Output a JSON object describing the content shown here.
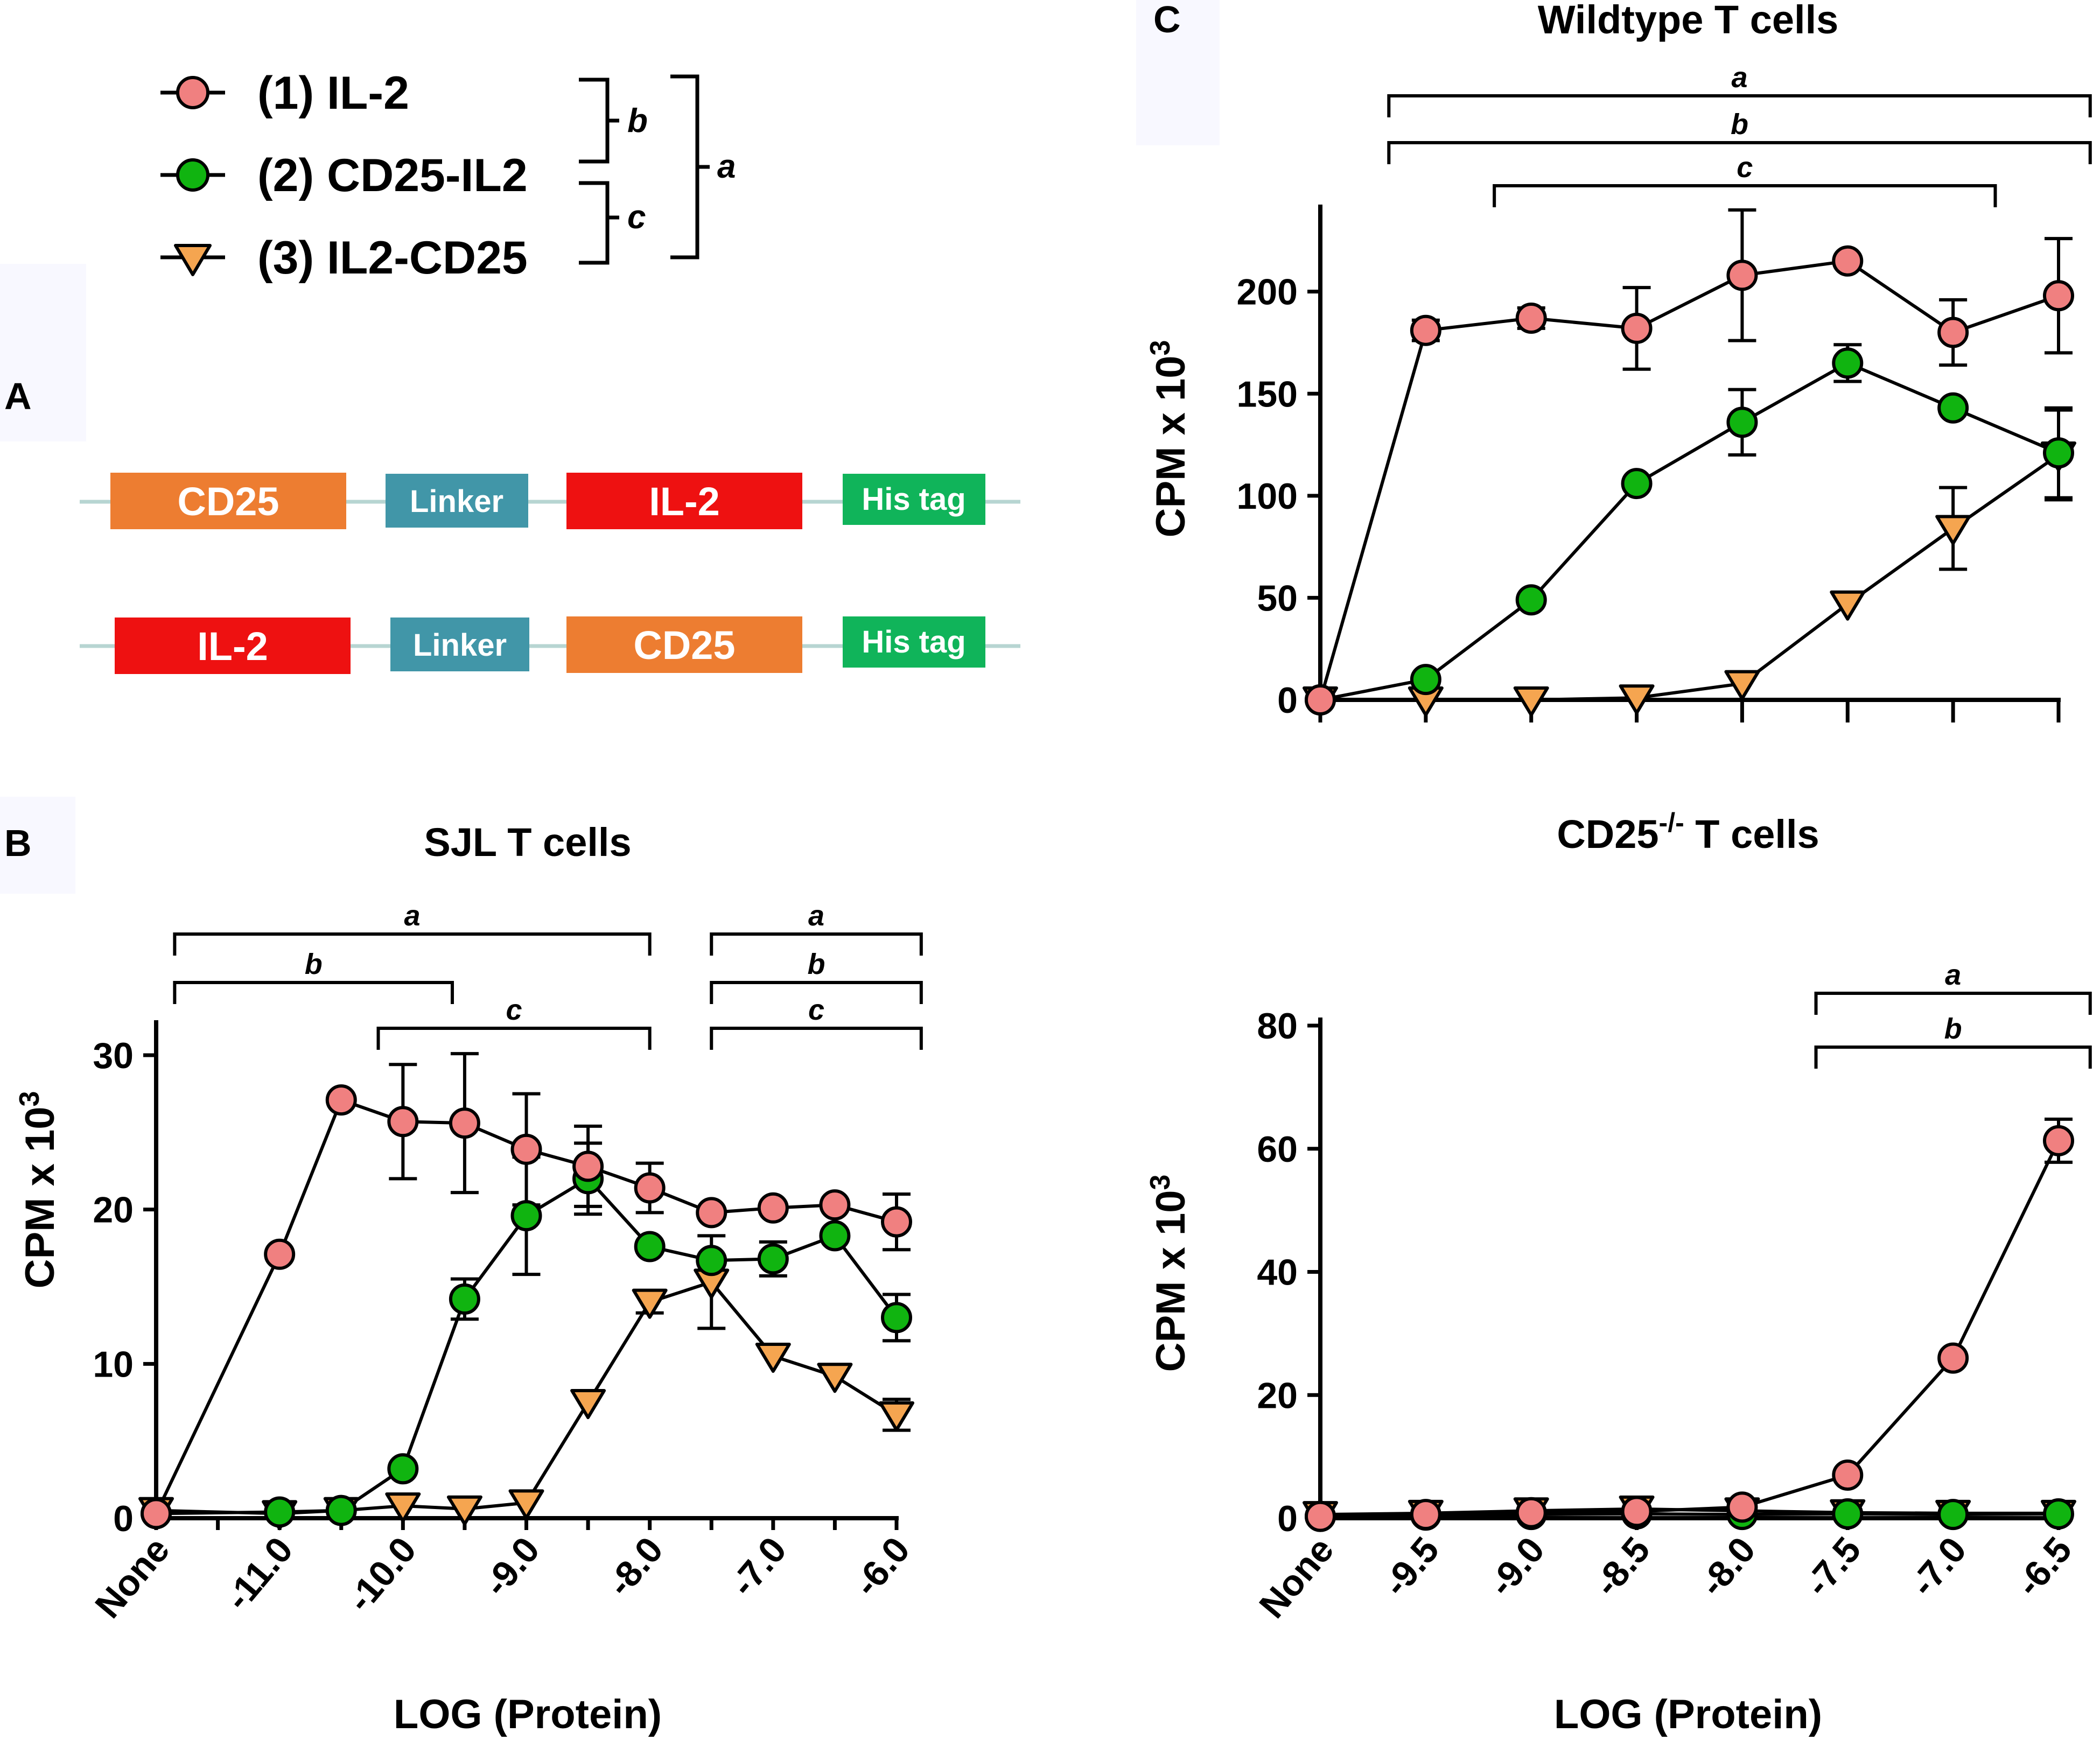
{
  "legend": {
    "items": [
      {
        "label": "(1) IL-2",
        "marker": "circle",
        "color": "#F08080"
      },
      {
        "label": "(2) CD25-IL2",
        "marker": "circle",
        "color": "#10B410"
      },
      {
        "label": "(3) IL2-CD25",
        "marker": "triangle-down",
        "color": "#F5A550"
      }
    ],
    "brackets": [
      "b",
      "c",
      "a"
    ]
  },
  "panels": {
    "A": "A",
    "B": "B",
    "C": "C"
  },
  "constructs": [
    {
      "boxes": [
        {
          "label": "CD25",
          "color": "#ED7D31"
        },
        {
          "label": "Linker",
          "color": "#4196A8"
        },
        {
          "label": "IL-2",
          "color": "#EE1111"
        },
        {
          "label": "His tag",
          "color": "#10B45A"
        }
      ]
    },
    {
      "boxes": [
        {
          "label": "IL-2",
          "color": "#EE1111"
        },
        {
          "label": "Linker",
          "color": "#4196A8"
        },
        {
          "label": "CD25",
          "color": "#ED7D31"
        },
        {
          "label": "His tag",
          "color": "#10B45A"
        }
      ]
    }
  ],
  "chart_data": [
    {
      "id": "sjl",
      "type": "line",
      "title": "SJL T cells",
      "xlabel": "LOG (Protein)",
      "ylabel": "CPM x 10",
      "ylabel_sup": "3",
      "ylim": [
        0,
        30
      ],
      "yticks": [
        0,
        10,
        20,
        30
      ],
      "x_ticks": [
        "None",
        "-11.0",
        "-10.0",
        "-9.0",
        "-8.0",
        "-7.0",
        "-6.0"
      ],
      "x_tick_pos": [
        0,
        2,
        4,
        6,
        8,
        10,
        12
      ],
      "xmax": 12,
      "series": [
        {
          "name": "(1) IL-2",
          "x": [
            0,
            2,
            3,
            4,
            5,
            6,
            7,
            8,
            9,
            10,
            11,
            12
          ],
          "values": [
            0.3,
            17.1,
            27.1,
            25.7,
            25.6,
            23.9,
            22.8,
            21.4,
            19.8,
            20.1,
            20.3,
            19.2
          ],
          "err": [
            0,
            0,
            0,
            3.7,
            4.5,
            3.6,
            2.6,
            1.6,
            0,
            0,
            0,
            1.8
          ]
        },
        {
          "name": "(2) CD25-IL2",
          "x": [
            0,
            2,
            3,
            4,
            5,
            6,
            7,
            8,
            9,
            10,
            11,
            12
          ],
          "values": [
            0.3,
            0.4,
            0.5,
            3.2,
            14.2,
            19.6,
            22.0,
            17.6,
            16.7,
            16.8,
            18.3,
            13.0
          ],
          "err": [
            0,
            0,
            0,
            0,
            1.3,
            3.8,
            2.3,
            0,
            0,
            1.1,
            0,
            1.5
          ]
        },
        {
          "name": "(3) IL2-CD25",
          "x": [
            0,
            2,
            3,
            4,
            5,
            6,
            7,
            8,
            9,
            10,
            11,
            12
          ],
          "values": [
            0.5,
            0.3,
            0.5,
            0.8,
            0.6,
            1.0,
            7.5,
            14.0,
            15.3,
            10.5,
            9.2,
            6.7
          ],
          "err": [
            0,
            0,
            0,
            0,
            0,
            0,
            0,
            0.7,
            3.0,
            0,
            0,
            1.0
          ]
        }
      ],
      "brackets": [
        {
          "label": "a",
          "from": 0.3,
          "to": 8
        },
        {
          "label": "b",
          "from": 0.3,
          "to": 4.8
        },
        {
          "label": "c",
          "from": 3.6,
          "to": 8
        },
        {
          "label": "a",
          "from": 9,
          "to": 12.4
        },
        {
          "label": "b",
          "from": 9,
          "to": 12.4
        },
        {
          "label": "c",
          "from": 9,
          "to": 12.4
        }
      ]
    },
    {
      "id": "wildtype",
      "type": "line",
      "title": "Wildtype T cells",
      "xlabel": "",
      "ylabel": "CPM x 10",
      "ylabel_sup": "3",
      "ylim": [
        0,
        240
      ],
      "yticks": [
        0,
        50,
        100,
        150,
        200
      ],
      "x_ticks": [],
      "x_tick_pos": [
        0,
        1,
        2,
        3,
        4,
        5,
        6,
        7
      ],
      "xmax": 7,
      "series": [
        {
          "name": "(1) IL-2",
          "x": [
            0,
            1,
            2,
            3,
            4,
            5,
            6,
            7
          ],
          "values": [
            0,
            181,
            187,
            182,
            208,
            215,
            180,
            198
          ],
          "err": [
            0,
            5,
            5,
            20,
            32,
            0,
            16,
            28
          ]
        },
        {
          "name": "(2) CD25-IL2",
          "x": [
            0,
            1,
            2,
            3,
            4,
            5,
            6,
            7
          ],
          "values": [
            0,
            10,
            49,
            106,
            136,
            165,
            143,
            121
          ],
          "err": [
            0,
            0,
            0,
            0,
            16,
            9,
            0,
            22
          ]
        },
        {
          "name": "(3) IL2-CD25",
          "x": [
            0,
            1,
            2,
            3,
            4,
            5,
            6,
            7
          ],
          "values": [
            0,
            0,
            0,
            1,
            8,
            47,
            84,
            120
          ],
          "err": [
            0,
            0,
            0,
            0,
            0,
            0,
            20,
            22
          ]
        }
      ],
      "brackets": [
        {
          "label": "a",
          "from": 0.65,
          "to": 7.3
        },
        {
          "label": "b",
          "from": 0.65,
          "to": 7.3
        },
        {
          "label": "c",
          "from": 1.65,
          "to": 6.4
        }
      ]
    },
    {
      "id": "cd25ko",
      "type": "line",
      "title": "CD25",
      "title_sup": "-/-",
      "title_rest": " T cells",
      "xlabel": "LOG (Protein)",
      "ylabel": "CPM x 10",
      "ylabel_sup": "3",
      "ylim": [
        0,
        80
      ],
      "yticks": [
        0,
        20,
        40,
        60,
        80
      ],
      "x_ticks": [
        "None",
        "-9.5",
        "-9.0",
        "-8.5",
        "-8.0",
        "-7.5",
        "-7.0",
        "-6.5"
      ],
      "x_tick_pos": [
        0,
        1,
        2,
        3,
        4,
        5,
        6,
        7
      ],
      "xmax": 7,
      "series": [
        {
          "name": "(1) IL-2",
          "x": [
            0,
            1,
            2,
            3,
            4,
            5,
            6,
            7
          ],
          "values": [
            0.3,
            0.6,
            0.9,
            1.1,
            1.8,
            7.0,
            26.0,
            61.3
          ],
          "err": [
            0,
            0,
            0,
            0,
            0,
            0,
            0,
            3.5
          ]
        },
        {
          "name": "(2) CD25-IL2",
          "x": [
            0,
            1,
            2,
            3,
            4,
            5,
            6,
            7
          ],
          "values": [
            0.3,
            0.5,
            0.6,
            0.7,
            0.6,
            0.7,
            0.6,
            0.7
          ],
          "err": [
            0,
            0,
            0,
            0,
            0,
            0,
            0,
            0
          ]
        },
        {
          "name": "(3) IL2-CD25",
          "x": [
            0,
            1,
            2,
            3,
            4,
            5,
            6,
            7
          ],
          "values": [
            0.6,
            0.8,
            1.2,
            1.5,
            1.2,
            0.9,
            0.8,
            0.8
          ],
          "err": [
            0,
            0,
            0,
            0,
            0,
            0,
            0,
            0
          ]
        }
      ],
      "brackets": [
        {
          "label": "a",
          "from": 4.7,
          "to": 7.3
        },
        {
          "label": "b",
          "from": 4.7,
          "to": 7.3
        }
      ]
    }
  ]
}
